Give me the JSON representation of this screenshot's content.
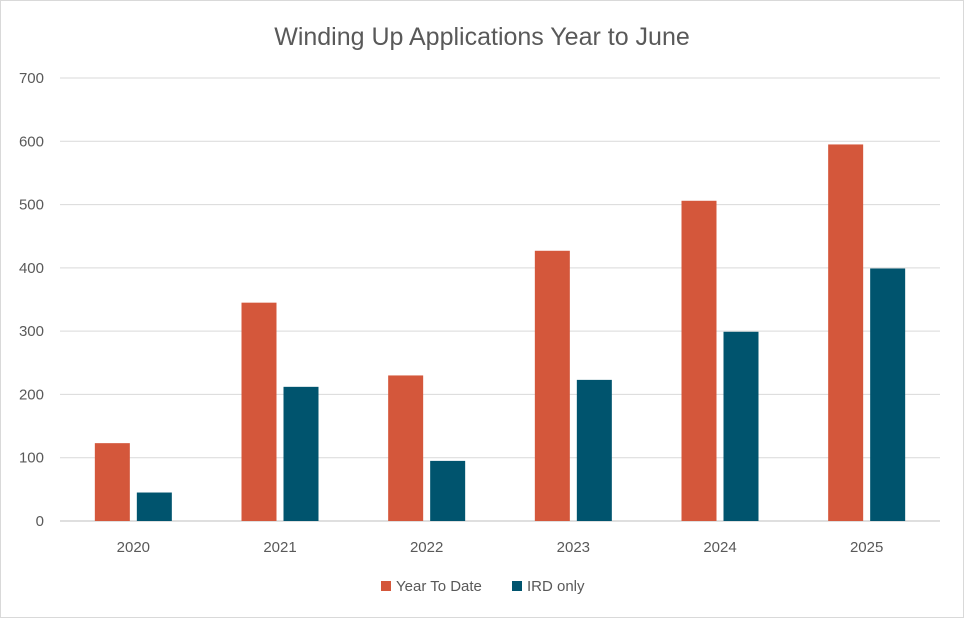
{
  "chart_data": {
    "type": "bar",
    "title": "Winding Up Applications Year to June",
    "xlabel": "",
    "ylabel": "",
    "categories": [
      "2020",
      "2021",
      "2022",
      "2023",
      "2024",
      "2025"
    ],
    "series": [
      {
        "name": "Year To Date",
        "color": "#d4573b",
        "values": [
          123,
          345,
          230,
          427,
          506,
          595
        ]
      },
      {
        "name": "IRD only",
        "color": "#00546e",
        "values": [
          45,
          212,
          95,
          223,
          299,
          399
        ]
      }
    ],
    "ylim": [
      0,
      700
    ],
    "yticks": [
      0,
      100,
      200,
      300,
      400,
      500,
      600,
      700
    ],
    "grid": true,
    "legend_position": "bottom",
    "colors": {
      "gridline": "#d9d9d9",
      "axis": "#bfbfbf",
      "text": "#595959"
    }
  }
}
